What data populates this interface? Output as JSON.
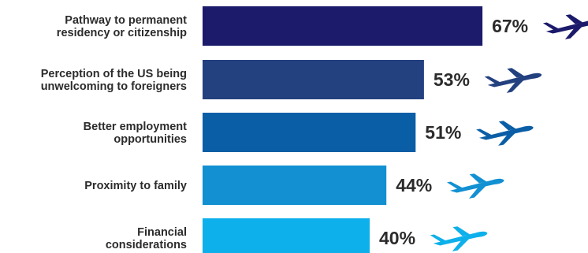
{
  "chart_data": {
    "type": "bar",
    "orientation": "horizontal",
    "categories": [
      "Pathway to permanent residency or citizenship",
      "Perception of the US being unwelcoming to foreigners",
      "Better employment opportunities",
      "Proximity to family",
      "Financial considerations"
    ],
    "category_label_lines": [
      [
        "Pathway to permanent",
        "residency or citizenship"
      ],
      [
        "Perception of the US being",
        "unwelcoming to foreigners"
      ],
      [
        "Better employment",
        "opportunities"
      ],
      [
        "Proximity to family"
      ],
      [
        "Financial",
        "considerations"
      ]
    ],
    "values": [
      67,
      53,
      51,
      44,
      40
    ],
    "value_labels": [
      "67%",
      "53%",
      "51%",
      "44%",
      "40%"
    ],
    "colors": [
      "#1b1a6b",
      "#23407f",
      "#0a5ea6",
      "#1290d2",
      "#0db0ea"
    ],
    "icon": "airplane-icon",
    "xlim": [
      0,
      100
    ],
    "grid": false,
    "legend": "none"
  }
}
